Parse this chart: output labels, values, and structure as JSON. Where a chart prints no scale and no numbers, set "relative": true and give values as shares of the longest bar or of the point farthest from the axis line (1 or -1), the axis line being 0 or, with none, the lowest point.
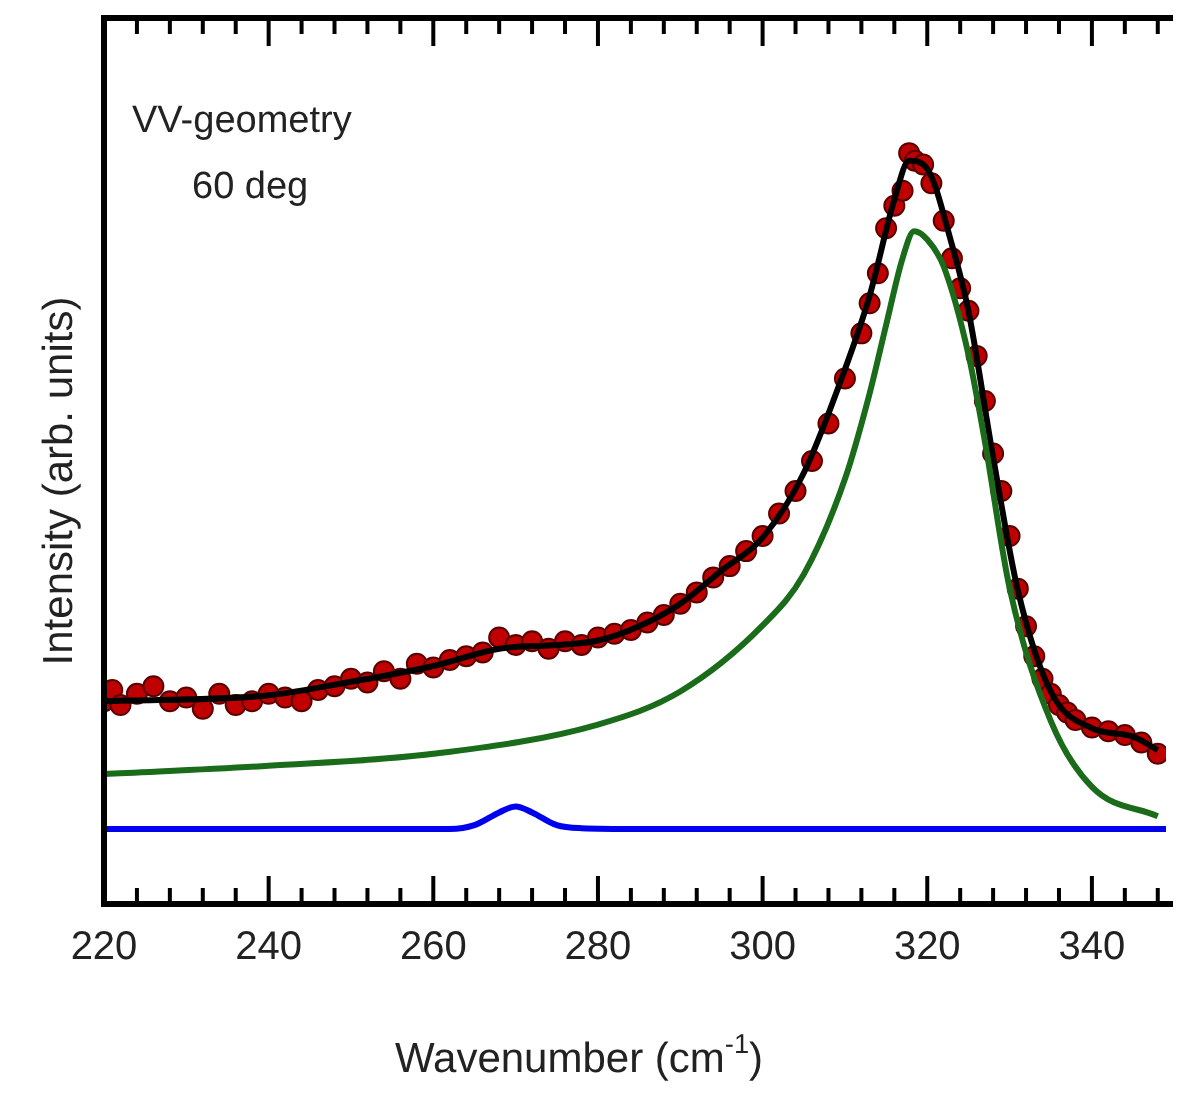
{
  "chart_data": {
    "type": "scatter",
    "xlabel": "Wavenumber (cm$^{-1}$)",
    "ylabel": "Intensity (arb. units)",
    "annotations": [
      "VV-geometry",
      "60 deg"
    ],
    "xlim": [
      220,
      349
    ],
    "xticks": [
      220,
      {
        "value": 224,
        "label": null
      },
      {
        "value": 228,
        "label": null
      },
      {
        "value": 232,
        "label": null
      },
      {
        "value": 236,
        "label": null
      },
      240,
      {
        "value": 244,
        "label": null
      },
      {
        "value": 248,
        "label": null
      },
      {
        "value": 252,
        "label": null
      },
      {
        "value": 256,
        "label": null
      },
      260,
      {
        "value": 264,
        "label": null
      },
      {
        "value": 268,
        "label": null
      },
      {
        "value": 272,
        "label": null
      },
      {
        "value": 276,
        "label": null
      },
      280,
      {
        "value": 284,
        "label": null
      },
      {
        "value": 288,
        "label": null
      },
      {
        "value": 292,
        "label": null
      },
      {
        "value": 296,
        "label": null
      },
      300,
      {
        "value": 304,
        "label": null
      },
      {
        "value": 308,
        "label": null
      },
      {
        "value": 312,
        "label": null
      },
      {
        "value": 316,
        "label": null
      },
      320,
      {
        "value": 324,
        "label": null
      },
      {
        "value": 328,
        "label": null
      },
      {
        "value": 332,
        "label": null
      },
      {
        "value": 336,
        "label": null
      },
      340,
      {
        "value": 344,
        "label": null
      },
      {
        "value": 348,
        "label": null
      }
    ],
    "relative": true,
    "legend": false,
    "grid": false,
    "series": [
      {
        "type": "line",
        "marker": "none",
        "color": "#1a6b1a",
        "x": [
          220,
          240,
          260,
          280,
          290,
          300,
          305,
          310,
          313,
          315,
          317,
          318.4,
          320,
          322,
          325,
          327,
          330,
          335,
          340,
          348
        ],
        "values": [
          0.173,
          0.184,
          0.2,
          0.239,
          0.283,
          0.371,
          0.439,
          0.566,
          0.68,
          0.771,
          0.86,
          0.896,
          0.885,
          0.849,
          0.732,
          0.616,
          0.421,
          0.244,
          0.156,
          0.117
        ]
      },
      {
        "type": "line",
        "marker": "none",
        "color": "#0000ee",
        "x": [
          220,
          250,
          262,
          265,
          268,
          270,
          272,
          275,
          278,
          285,
          349
        ],
        "values": [
          0.1,
          0.1,
          0.1,
          0.105,
          0.122,
          0.13,
          0.122,
          0.105,
          0.101,
          0.1,
          0.1
        ]
      },
      {
        "type": "line",
        "marker": "none",
        "color": "#000000",
        "x": [
          220,
          240,
          250,
          260,
          268,
          275,
          280,
          285,
          290,
          295,
          300,
          305,
          310,
          313,
          316,
          317.8,
          320,
          323,
          325,
          328,
          331,
          335,
          340,
          345,
          348
        ],
        "values": [
          0.27,
          0.278,
          0.296,
          0.317,
          0.34,
          0.345,
          0.351,
          0.37,
          0.4,
          0.444,
          0.488,
          0.574,
          0.712,
          0.81,
          0.938,
          0.99,
          0.979,
          0.878,
          0.79,
          0.595,
          0.418,
          0.283,
          0.234,
          0.223,
          0.205
        ]
      },
      {
        "type": "scatter",
        "marker": "circle",
        "color": "#c00000",
        "x": [
          220,
          221,
          222,
          224,
          226,
          228,
          230,
          232,
          234,
          236,
          238,
          240,
          242,
          244,
          246,
          248,
          250,
          252,
          254,
          256,
          258,
          260,
          262,
          264,
          266,
          268,
          270,
          272,
          274,
          276,
          278,
          280,
          282,
          284,
          286,
          288,
          290,
          292,
          294,
          296,
          298,
          300,
          302,
          304,
          306,
          308,
          310,
          312,
          313,
          314,
          315,
          316,
          317,
          317.8,
          318.5,
          319.5,
          320.5,
          322,
          323,
          324,
          325,
          326,
          327,
          328,
          329,
          330,
          331,
          332,
          333,
          334,
          335,
          336,
          337,
          338,
          340,
          342,
          344,
          346,
          348
        ],
        "values": [
          0.27,
          0.285,
          0.265,
          0.28,
          0.29,
          0.27,
          0.275,
          0.26,
          0.28,
          0.265,
          0.27,
          0.28,
          0.275,
          0.27,
          0.285,
          0.29,
          0.3,
          0.295,
          0.31,
          0.3,
          0.32,
          0.315,
          0.325,
          0.33,
          0.335,
          0.355,
          0.345,
          0.35,
          0.34,
          0.35,
          0.345,
          0.355,
          0.36,
          0.365,
          0.375,
          0.385,
          0.4,
          0.415,
          0.435,
          0.45,
          0.47,
          0.49,
          0.52,
          0.55,
          0.59,
          0.64,
          0.7,
          0.76,
          0.8,
          0.84,
          0.9,
          0.93,
          0.95,
          1,
          0.99,
          0.985,
          0.96,
          0.91,
          0.86,
          0.82,
          0.79,
          0.73,
          0.67,
          0.6,
          0.55,
          0.49,
          0.42,
          0.37,
          0.33,
          0.3,
          0.28,
          0.265,
          0.255,
          0.245,
          0.235,
          0.23,
          0.225,
          0.215,
          0.2
        ]
      }
    ]
  }
}
